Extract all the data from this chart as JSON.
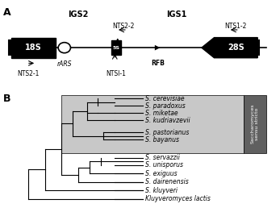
{
  "panel_A_label": "A",
  "panel_B_label": "B",
  "IGS2_label": "IGS2",
  "IGS1_label": "IGS1",
  "NTS2_2_label": "NTS2-2",
  "NTS1_2_label": "NTS1-2",
  "NTS2_1_label": "NTS2-1",
  "NTS1_1_label": "NTSI-1",
  "rARS_label": "rARS",
  "RFB_label": "RFB",
  "18S_label": "18S",
  "28S_label": "28S",
  "bg_color": "#ffffff",
  "box_color": "#000000",
  "gray_box_color": "#c0c0c0",
  "dark_gray_color": "#606060",
  "species_sensu_stricto": [
    "S. cerevisiae",
    "S. paradoxus",
    "S. miketae",
    "S. kudriavzevii",
    "S. pastorianus",
    "S. bayanus"
  ],
  "species_other": [
    "S. servazzii",
    "S. unisporus",
    "S. exiguus",
    "S. dairenensis",
    "S. kluyveri",
    "Kluyveromyces lactis"
  ],
  "sensu_label": "Saccharomyces\nsensu stricto"
}
